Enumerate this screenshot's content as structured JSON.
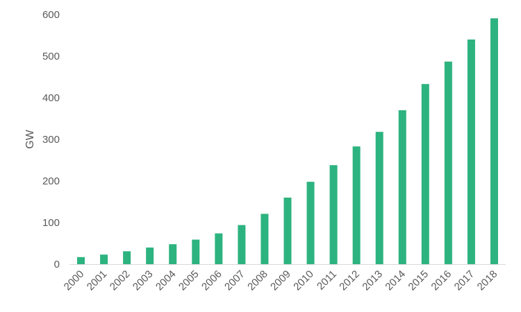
{
  "chart_data": {
    "type": "bar",
    "title": "",
    "xlabel": "",
    "ylabel": "GW",
    "ylim": [
      0,
      600
    ],
    "yticks": [
      0,
      100,
      200,
      300,
      400,
      500,
      600
    ],
    "grid": false,
    "legend": "none",
    "bar_color": "#2db37f",
    "categories": [
      "2000",
      "2001",
      "2002",
      "2003",
      "2004",
      "2005",
      "2006",
      "2007",
      "2008",
      "2009",
      "2010",
      "2011",
      "2012",
      "2013",
      "2014",
      "2015",
      "2016",
      "2017",
      "2018"
    ],
    "values": [
      17,
      23,
      31,
      40,
      48,
      59,
      74,
      94,
      121,
      160,
      198,
      238,
      283,
      318,
      370,
      433,
      487,
      540,
      591
    ]
  }
}
